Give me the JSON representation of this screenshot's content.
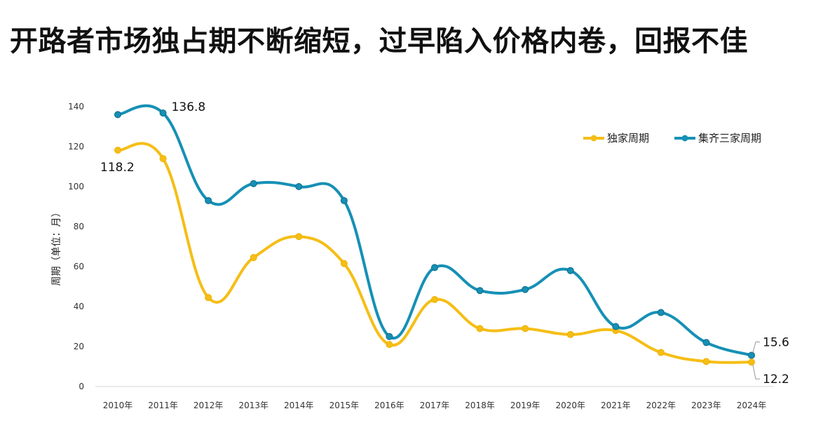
{
  "title": "开路者市场独占期不断缩短，过早陷入价格内卷，回报不佳",
  "chart_data": {
    "type": "line",
    "x": [
      "2010年",
      "2011年",
      "2012年",
      "2013年",
      "2014年",
      "2015年",
      "2016年",
      "2017年",
      "2018年",
      "2019年",
      "2020年",
      "2021年",
      "2022年",
      "2023年",
      "2024年"
    ],
    "ylabel": "周期（单位：月）",
    "ylim": [
      0,
      140
    ],
    "yticks": [
      0,
      20,
      40,
      60,
      80,
      100,
      120,
      140
    ],
    "grid": false,
    "legend": "top-right",
    "smooth": true,
    "series": [
      {
        "name": "独家周期",
        "color": "#F5BE16",
        "values": [
          118.2,
          114,
          44.5,
          64.5,
          75,
          61.5,
          21,
          43.5,
          29,
          29,
          26,
          28,
          17,
          12.5,
          12.2
        ],
        "labels": {
          "0": "118.2",
          "14": "12.2"
        }
      },
      {
        "name": "集齐三家周期",
        "color": "#1690B5",
        "values": [
          136,
          136.8,
          93,
          101.5,
          100,
          93,
          25,
          59.5,
          48,
          48.5,
          58,
          30,
          37,
          22,
          15.6
        ],
        "labels": {
          "1": "136.8",
          "14": "15.6"
        }
      }
    ]
  }
}
